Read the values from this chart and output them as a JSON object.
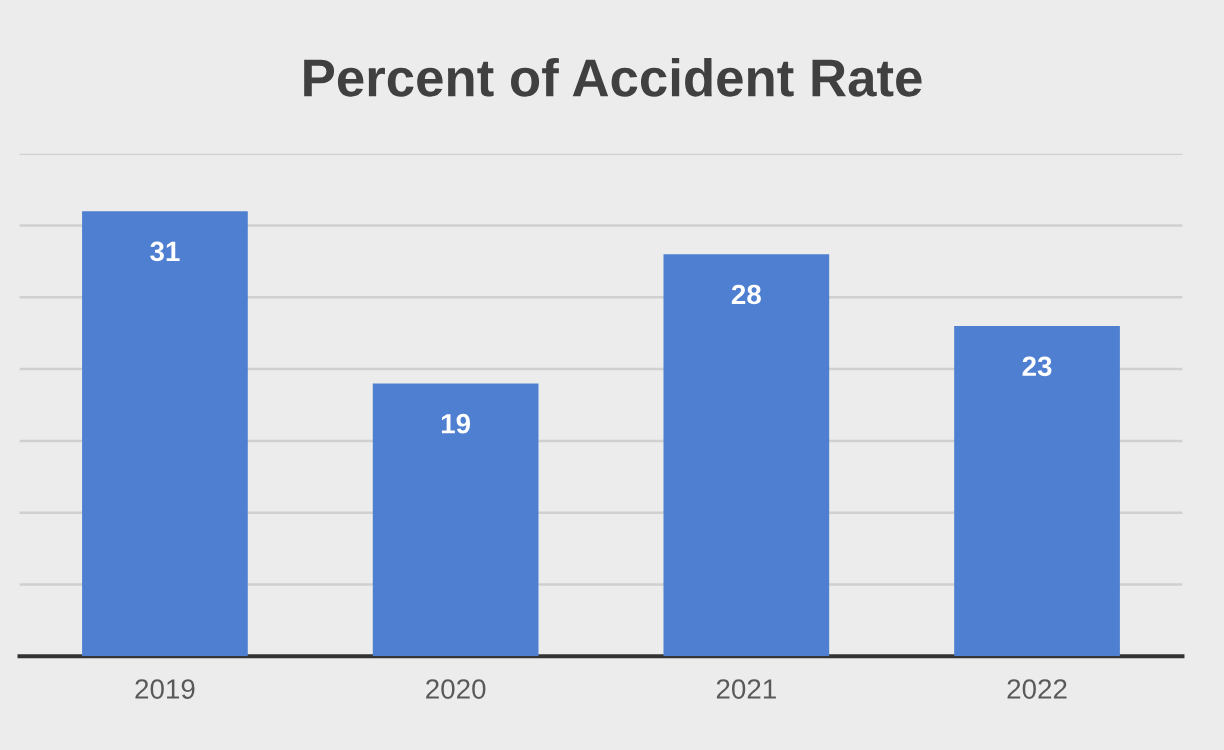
{
  "chart_data": {
    "type": "bar",
    "title": "Percent of Accident Rate",
    "categories": [
      "2019",
      "2020",
      "2021",
      "2022"
    ],
    "values": [
      31,
      19,
      28,
      23
    ],
    "color": "#4f7fd1",
    "ylim": [
      0,
      35
    ],
    "yticks": [
      {
        "value": 0,
        "label": null
      },
      {
        "value": 5,
        "label": null
      },
      {
        "value": 10,
        "label": null
      },
      {
        "value": 15,
        "label": null
      },
      {
        "value": 20,
        "label": null
      },
      {
        "value": 25,
        "label": null
      },
      {
        "value": 30,
        "label": null
      },
      {
        "value": 35,
        "label": null
      }
    ],
    "tick_labels": "x",
    "grid": "y",
    "data_labels": true
  }
}
